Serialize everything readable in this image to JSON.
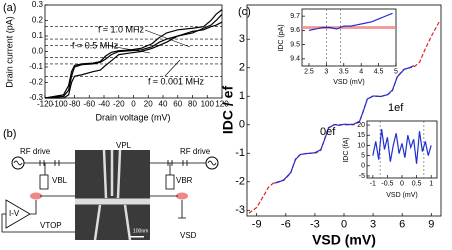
{
  "chart_data": [
    {
      "type": "line",
      "panel_label": "(a)",
      "x_label": "Drain voltage (mV)",
      "y_label": "Drain current (pA)",
      "xlim": [
        -120,
        120
      ],
      "xticks": [
        -120,
        -100,
        -80,
        -60,
        -40,
        -20,
        0,
        20,
        40,
        60,
        80,
        100,
        120
      ],
      "ylim": [
        -0.3,
        0.3
      ],
      "yticks": [
        -0.3,
        -0.2,
        -0.1,
        {
          "value": 0,
          "label": "0.0"
        },
        0.1,
        0.2,
        0.3
      ],
      "hlines": [
        0.16,
        0.08,
        0.04,
        -0.04,
        -0.08,
        -0.16
      ],
      "series": [
        {
          "name": "f ≈ 1.0 MHz",
          "color": "#000000",
          "x": [
            -120,
            -95,
            -88,
            -84,
            -80,
            -70,
            -55,
            -45,
            -38,
            -30,
            -20,
            -5,
            10,
            25,
            35,
            45,
            60,
            80,
            95,
            105,
            112,
            120
          ],
          "values": [
            -0.3,
            -0.29,
            -0.25,
            -0.16,
            -0.1,
            -0.085,
            -0.08,
            -0.07,
            -0.05,
            -0.02,
            0,
            0.005,
            0.01,
            0.03,
            0.06,
            0.08,
            0.1,
            0.12,
            0.15,
            0.17,
            0.2,
            0.24
          ]
        },
        {
          "name": "f = 0.5 MHz",
          "color": "#000000",
          "x": [
            -120,
            -95,
            -88,
            -84,
            -80,
            -70,
            -55,
            -45,
            -38,
            -30,
            -20,
            -5,
            10,
            25,
            35,
            45,
            60,
            80,
            95,
            105,
            112,
            120
          ],
          "values": [
            -0.3,
            -0.28,
            -0.22,
            -0.13,
            -0.09,
            -0.08,
            -0.075,
            -0.065,
            -0.03,
            -0.005,
            0.005,
            0.01,
            0.02,
            0.05,
            0.09,
            0.12,
            0.14,
            0.15,
            0.16,
            0.2,
            0.24,
            0.27
          ]
        },
        {
          "name": "f ≈ 0.001 MHz",
          "color": "#000000",
          "x": [
            -120,
            -95,
            -88,
            -84,
            -80,
            -70,
            -55,
            -45,
            -38,
            -30,
            -20,
            -5,
            10,
            25,
            35,
            45,
            60,
            80,
            95,
            105,
            112,
            120
          ],
          "values": [
            -0.3,
            -0.3,
            -0.28,
            -0.2,
            -0.16,
            -0.15,
            -0.13,
            -0.12,
            -0.09,
            -0.06,
            -0.02,
            -0.01,
            0,
            0.02,
            0.04,
            0.06,
            0.1,
            0.13,
            0.14,
            0.16,
            0.17,
            0.19
          ]
        }
      ]
    },
    {
      "type": "line",
      "panel_label": "(c)",
      "x_label": "VSD (mV)",
      "y_label": "IDC / ef",
      "xlim": [
        -10,
        10
      ],
      "xticks": [
        -9,
        -6,
        -3,
        0,
        3,
        6,
        9
      ],
      "ylim": [
        -3.2,
        4.2
      ],
      "yticks": [
        -3,
        -2,
        -1,
        0,
        1,
        2,
        3
      ],
      "annotations": [
        "1ef",
        "0ef"
      ],
      "series": [
        {
          "color": "#e02020",
          "dashed": true,
          "x": [
            -9.8,
            -9,
            -8.3,
            -7.8,
            -7.3,
            -6.8,
            -6.2,
            -5.5,
            -5,
            -4.5,
            -3.8,
            -3,
            -2.4,
            -2,
            -1.6,
            -1,
            0,
            1,
            1.6,
            2,
            2.4,
            3,
            3.8,
            4.5,
            5,
            5.5,
            6.2,
            6.8,
            7.3,
            7.8,
            8.3,
            9,
            9.8
          ],
          "values": [
            -3.1,
            -2.9,
            -2.5,
            -2.2,
            -2.05,
            -2,
            -1.95,
            -1.7,
            -1.2,
            -1.05,
            -1,
            -1,
            -0.9,
            -0.5,
            -0.1,
            0,
            0,
            0,
            0.1,
            0.5,
            0.9,
            1,
            1,
            1.05,
            1.2,
            1.7,
            1.95,
            2,
            2.05,
            2.2,
            2.6,
            3.1,
            3.6
          ]
        },
        {
          "color": "#2030d0",
          "x": [
            -7.2,
            -6.8,
            -6.2,
            -5.5,
            -5,
            -4.5,
            -3.8,
            -3,
            -2.4,
            -2,
            -1.6,
            -1,
            -0.5,
            0,
            0.5,
            1,
            1.6,
            2,
            2.4,
            3,
            3.8,
            4.5,
            5,
            5.5,
            6.2,
            6.8,
            7.2
          ],
          "values": [
            -2.05,
            -2.02,
            -1.93,
            -1.68,
            -1.22,
            -1.04,
            -1.01,
            -0.98,
            -0.88,
            -0.52,
            -0.12,
            0.01,
            -0.02,
            0.02,
            0.01,
            0.02,
            0.12,
            0.48,
            0.9,
            1.01,
            0.99,
            1.06,
            1.22,
            1.68,
            1.94,
            2.01,
            2.07
          ]
        }
      ]
    },
    {
      "type": "line",
      "x_label": "VSD (mV)",
      "y_label": "IDC (pA)",
      "xlim": [
        2.3,
        5
      ],
      "xticks": [
        2.5,
        3,
        3.5,
        4,
        4.5,
        5
      ],
      "ylim": [
        9.35,
        9.75
      ],
      "yticks": [
        9.4,
        9.5,
        9.6,
        9.7
      ],
      "vlines": [
        3,
        3.4
      ],
      "band": [
        9.61,
        9.63
      ],
      "band_color": "#f08080",
      "series": [
        {
          "color": "#2030d0",
          "x": [
            2.5,
            2.7,
            2.9,
            3.1,
            3.3,
            3.5,
            3.7,
            3.9,
            4.1,
            4.3,
            4.5,
            4.7,
            4.9
          ],
          "values": [
            9.6,
            9.61,
            9.62,
            9.62,
            9.61,
            9.63,
            9.63,
            9.64,
            9.65,
            9.66,
            9.68,
            9.7,
            9.72
          ]
        }
      ]
    },
    {
      "type": "line",
      "x_label": "VSD (mV)",
      "y_label": "IDC (fA)",
      "xlim": [
        -1.2,
        1.2
      ],
      "xticks": [
        -1,
        -0.5,
        0,
        0.5,
        1
      ],
      "ylim": [
        -6,
        22
      ],
      "yticks": [
        -5,
        0,
        5,
        10,
        15,
        20
      ],
      "vlines": [
        -0.75,
        0.75
      ],
      "series": [
        {
          "color": "#2030d0",
          "x": [
            -1,
            -0.9,
            -0.8,
            -0.7,
            -0.6,
            -0.5,
            -0.4,
            -0.3,
            -0.2,
            -0.1,
            0,
            0.1,
            0.2,
            0.3,
            0.4,
            0.5,
            0.6,
            0.7,
            0.8,
            0.9,
            1
          ],
          "values": [
            5,
            12,
            3,
            18,
            8,
            14,
            2,
            10,
            16,
            6,
            11,
            4,
            15,
            9,
            13,
            1,
            17,
            7,
            12,
            5,
            10
          ]
        }
      ]
    }
  ],
  "diagram": {
    "label": "(b)",
    "rf_left": "RF drive",
    "rf_right": "RF drive",
    "v_pl": "VPL",
    "v_bl": "VBL",
    "v_br": "VBR",
    "v_top": "VTOP",
    "v_sd": "VSD",
    "amplifier": "I-V",
    "scale_bar": "100nm"
  }
}
